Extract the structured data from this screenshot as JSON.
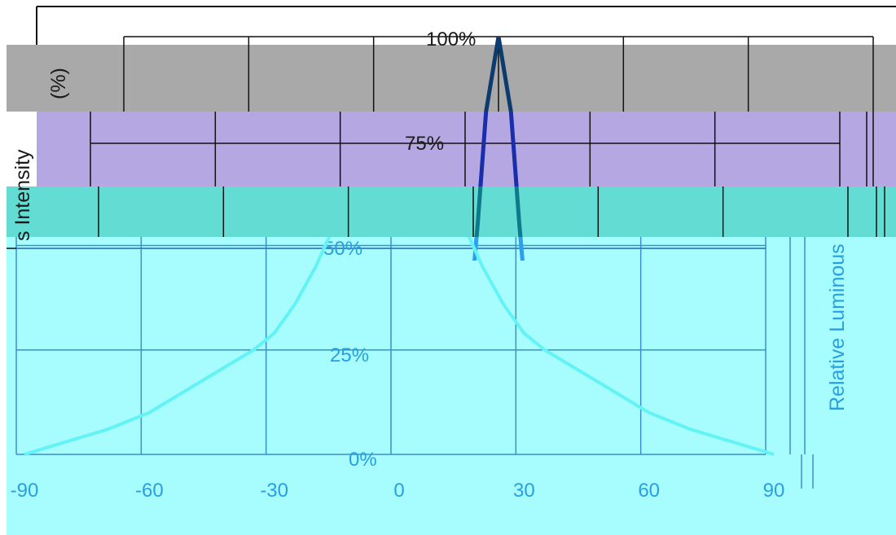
{
  "colors": {
    "background": "#ffffff",
    "band_gray": "#a9a9a9",
    "band_purple": "#b4a7e2",
    "band_teal": "#63dcd3",
    "band_cyan": "#a7fdfd",
    "text_dark": "#1a1a1a",
    "text_blue": "#2a9fe0",
    "grid_dark": "#111111",
    "grid_blue": "#3a8fd0",
    "curve_navy": "#0c3c6e",
    "curve_indigo": "#1a2dab",
    "curve_teal": "#0e7a8c",
    "curve_blue": "#2b9ff0",
    "curve_cyan": "#63f3f5"
  },
  "chart_data": {
    "type": "line",
    "title": "",
    "xlabel": "",
    "ylabel": "Relative Luminous Intensity (%)",
    "ylabel_fragments": {
      "left_top": "(%)",
      "left_mid": "s Intensity",
      "right": "Relative Luminous"
    },
    "x_ticks": [
      "-90",
      "-60",
      "-30",
      "0",
      "30",
      "60",
      "90"
    ],
    "y_ticks": [
      "0%",
      "25%",
      "50%",
      "75%",
      "100%"
    ],
    "xlim": [
      -90,
      90
    ],
    "ylim": [
      0,
      100
    ],
    "grid": true,
    "series": [
      {
        "name": "",
        "color": "#0c3c6e",
        "x": [
          -90,
          -60,
          -30,
          -20,
          -15,
          -10,
          -7,
          -5,
          -3,
          0,
          3,
          5,
          7,
          10,
          15,
          20,
          30,
          60,
          90
        ],
        "y": [
          0,
          0,
          0,
          0.5,
          2,
          12,
          32,
          55,
          82,
          100,
          82,
          55,
          32,
          12,
          2,
          0.5,
          0,
          0,
          0
        ]
      },
      {
        "name": "",
        "color": "#63f3f5",
        "x": [
          -90,
          -80,
          -70,
          -60,
          -50,
          -40,
          -35,
          -30,
          -25,
          -20,
          -15,
          0,
          15,
          20,
          25,
          30,
          35,
          40,
          50,
          60,
          70,
          80,
          90
        ],
        "y": [
          0,
          3,
          6,
          10,
          16,
          22,
          25,
          29,
          36,
          45,
          56,
          100,
          56,
          45,
          36,
          29,
          25,
          22,
          16,
          10,
          6,
          3,
          0
        ]
      }
    ]
  }
}
